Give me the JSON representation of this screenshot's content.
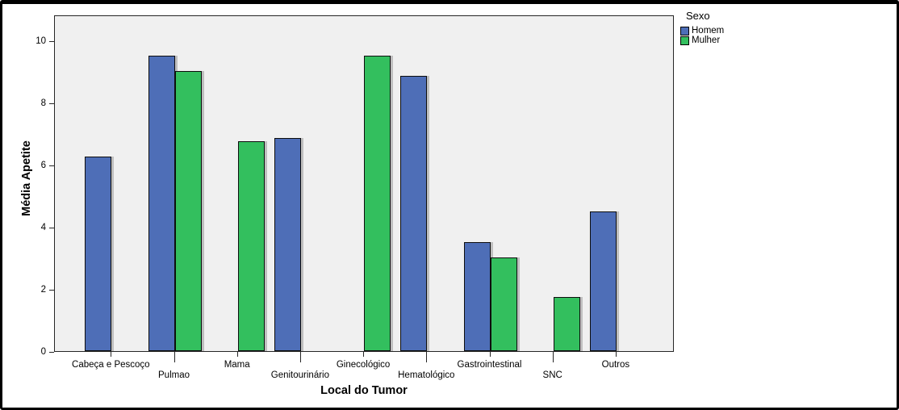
{
  "chart_data": {
    "type": "bar",
    "title": "",
    "xlabel": "Local do Tumor",
    "ylabel": "Média Apetite",
    "categories": [
      "Cabeça e Pescoço",
      "Pulmao",
      "Mama",
      "Genitourinário",
      "Ginecológico",
      "Hematológico",
      "Gastrointestinal",
      "SNC",
      "Outros"
    ],
    "series": [
      {
        "name": "Homem",
        "color": "#4E6EB7",
        "values": [
          6.25,
          9.5,
          null,
          6.85,
          null,
          8.85,
          3.5,
          null,
          4.5
        ]
      },
      {
        "name": "Mulher",
        "color": "#33BF5E",
        "values": [
          null,
          9.0,
          6.75,
          null,
          9.5,
          null,
          3.0,
          1.75,
          null
        ]
      }
    ],
    "y_ticks": [
      0,
      2,
      4,
      6,
      8,
      10
    ],
    "ylim": [
      0,
      10.8
    ],
    "grid": false,
    "bar_orientation": "vertical",
    "legend": {
      "title": "Sexo",
      "position": "top-right",
      "entries": [
        {
          "label": "Homem",
          "color": "#4E6EB7"
        },
        {
          "label": "Mulher",
          "color": "#33BF5E"
        }
      ]
    },
    "colors": {
      "plot_bg": "#F0F0F0",
      "plot_border": "#262626",
      "bar_border": "#0D0D0D",
      "text": "#000000",
      "frame": "#000000",
      "background": "#FFFFFF"
    }
  }
}
